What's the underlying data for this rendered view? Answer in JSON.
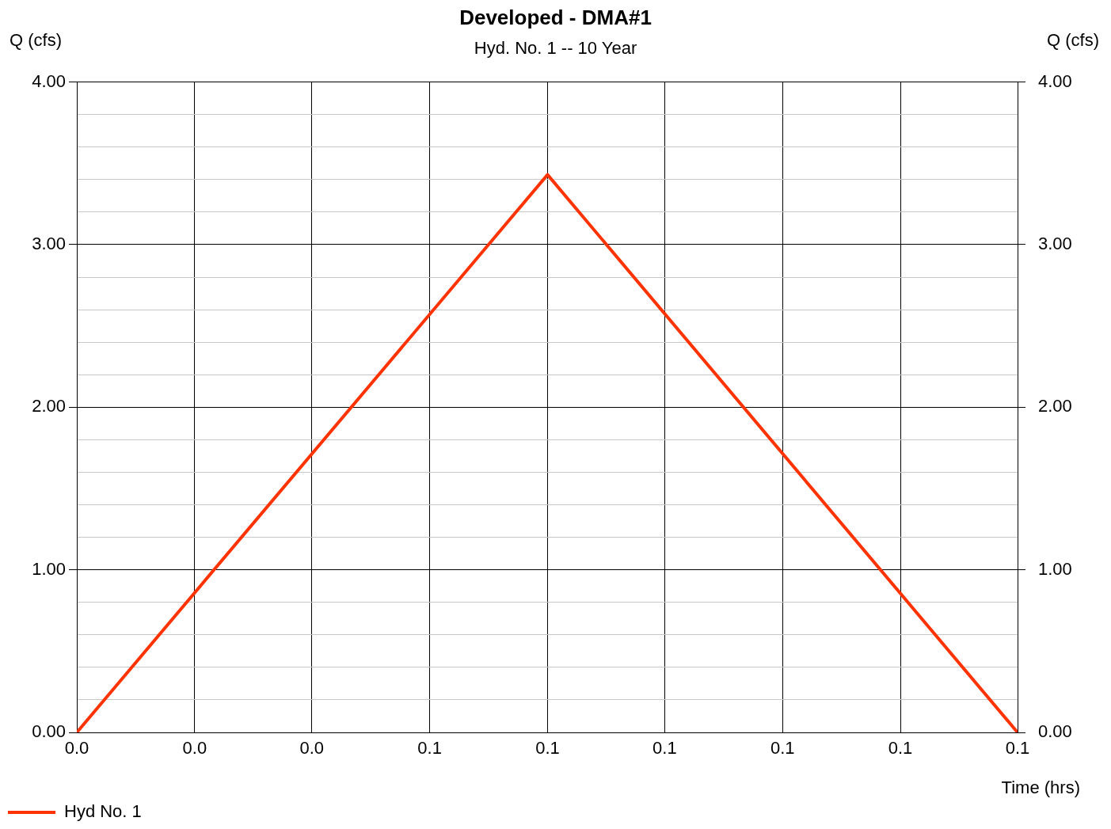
{
  "chart_data": {
    "type": "line",
    "title": "Developed - DMA#1",
    "subtitle": "Hyd. No. 1 -- 10 Year",
    "xlabel": "Time (hrs)",
    "ylabel": "Q (cfs)",
    "y2label": "Q (cfs)",
    "x": [
      0,
      0.0667,
      0.1333
    ],
    "series": [
      {
        "name": "Hyd No. 1",
        "color": "#ff3300",
        "values": [
          0,
          3.43,
          0
        ]
      }
    ],
    "xlim": [
      0,
      0.1333
    ],
    "xticks": [
      {
        "value": 0,
        "label": "0.0"
      },
      {
        "value": 0.0167,
        "label": "0.0"
      },
      {
        "value": 0.0333,
        "label": "0.0"
      },
      {
        "value": 0.05,
        "label": "0.1"
      },
      {
        "value": 0.0667,
        "label": "0.1"
      },
      {
        "value": 0.0833,
        "label": "0.1"
      },
      {
        "value": 0.1,
        "label": "0.1"
      },
      {
        "value": 0.1167,
        "label": "0.1"
      },
      {
        "value": 0.1333,
        "label": "0.1"
      }
    ],
    "ylim": [
      0,
      4
    ],
    "yticks": [
      {
        "value": 0,
        "label": "0.00"
      },
      {
        "value": 0.2,
        "label": null
      },
      {
        "value": 0.4,
        "label": null
      },
      {
        "value": 0.6,
        "label": null
      },
      {
        "value": 0.8,
        "label": null
      },
      {
        "value": 1,
        "label": "1.00"
      },
      {
        "value": 1.2,
        "label": null
      },
      {
        "value": 1.4,
        "label": null
      },
      {
        "value": 1.6,
        "label": null
      },
      {
        "value": 1.8,
        "label": null
      },
      {
        "value": 2,
        "label": "2.00"
      },
      {
        "value": 2.2,
        "label": null
      },
      {
        "value": 2.4,
        "label": null
      },
      {
        "value": 2.6,
        "label": null
      },
      {
        "value": 2.8,
        "label": null
      },
      {
        "value": 3,
        "label": "3.00"
      },
      {
        "value": 3.2,
        "label": null
      },
      {
        "value": 3.4,
        "label": null
      },
      {
        "value": 3.6,
        "label": null
      },
      {
        "value": 3.8,
        "label": null
      },
      {
        "value": 4,
        "label": "4.00"
      }
    ],
    "y2lim": [
      0,
      4
    ],
    "y2ticks": [
      {
        "value": 0,
        "label": "0.00"
      },
      {
        "value": 1,
        "label": "1.00"
      },
      {
        "value": 2,
        "label": "2.00"
      },
      {
        "value": 3,
        "label": "3.00"
      },
      {
        "value": 4,
        "label": "4.00"
      }
    ],
    "grid": true,
    "legend": "bottom left",
    "marker": "none",
    "line_style": "solid"
  }
}
